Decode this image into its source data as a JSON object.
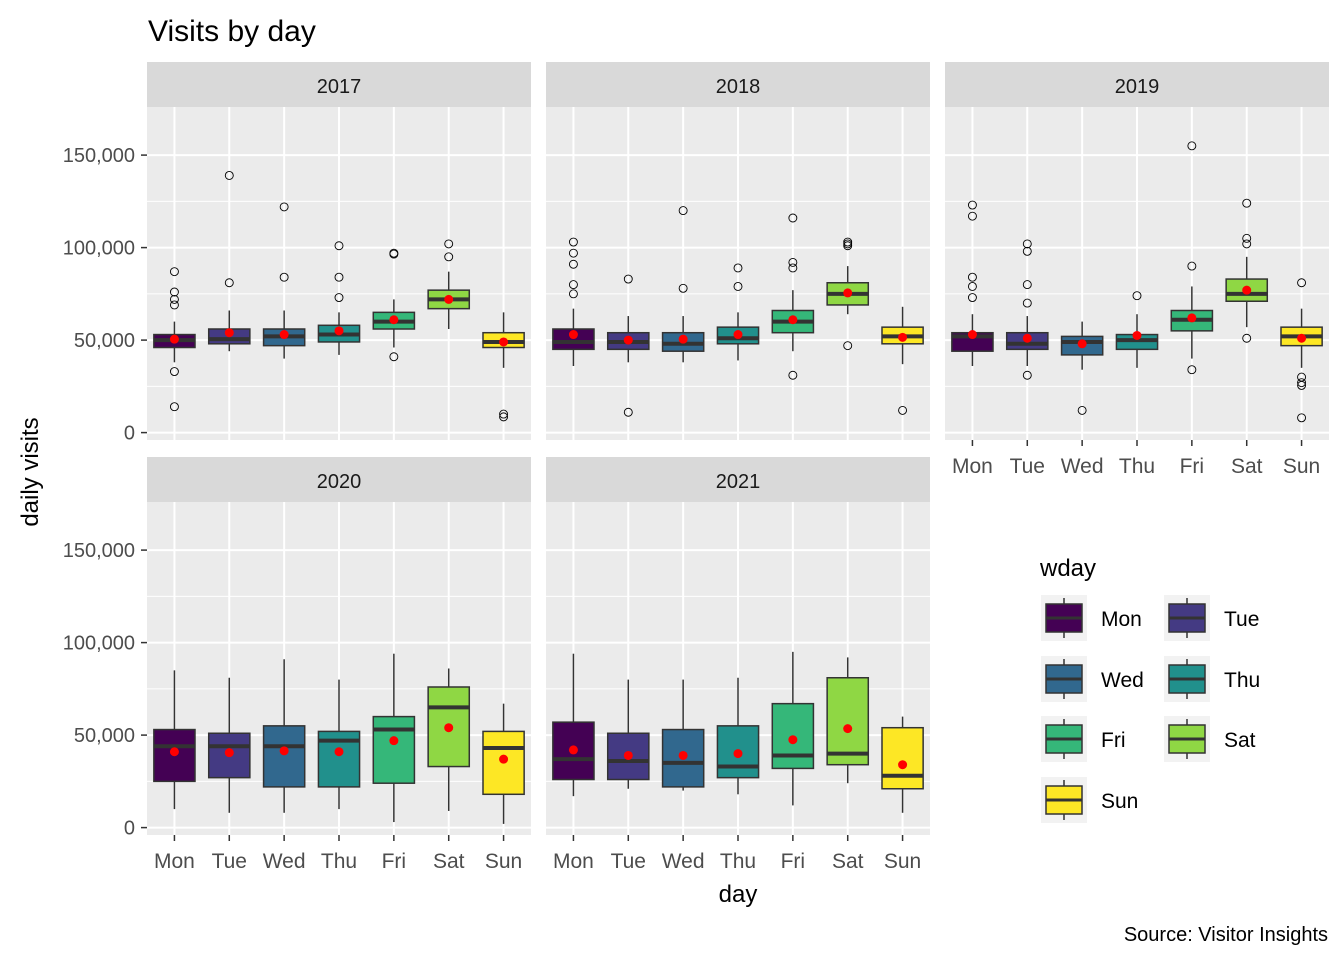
{
  "chart_data": {
    "type": "boxplot",
    "title": "Visits by day",
    "xlabel": "day",
    "ylabel": "daily visits",
    "caption": "Source: Visitor Insights",
    "ylim": [
      -4000,
      176000
    ],
    "y_ticks": [
      0,
      50000,
      100000,
      150000
    ],
    "y_tick_labels": [
      "0",
      "50,000",
      "100,000",
      "150,000"
    ],
    "categories": [
      "Mon",
      "Tue",
      "Wed",
      "Thu",
      "Fri",
      "Sat",
      "Sun"
    ],
    "legend": {
      "title": "wday",
      "position": "right",
      "entries": [
        "Mon",
        "Tue",
        "Wed",
        "Thu",
        "Fri",
        "Sat",
        "Sun"
      ]
    },
    "colors": {
      "Mon": "#440154",
      "Tue": "#443A83",
      "Wed": "#31688E",
      "Thu": "#21908C",
      "Fri": "#35B779",
      "Sat": "#8FD744",
      "Sun": "#FDE725",
      "mean_point": "#FF0000",
      "panel_bg": "#EBEBEB",
      "strip_bg": "#D9D9D9"
    },
    "grid": true,
    "panels": [
      {
        "year": "2017",
        "boxes": [
          {
            "day": "Mon",
            "lower_whisker": 38000,
            "q1": 46000,
            "median": 50000,
            "q3": 53000,
            "upper_whisker": 60000,
            "mean": 50500,
            "outliers": [
              87000,
              76000,
              72000,
              69000,
              33000,
              14000
            ]
          },
          {
            "day": "Tue",
            "lower_whisker": 44000,
            "q1": 48000,
            "median": 50500,
            "q3": 56000,
            "upper_whisker": 66000,
            "mean": 54000,
            "outliers": [
              139000,
              81000
            ]
          },
          {
            "day": "Wed",
            "lower_whisker": 40000,
            "q1": 47000,
            "median": 52000,
            "q3": 56000,
            "upper_whisker": 66000,
            "mean": 53000,
            "outliers": [
              122000,
              84000
            ]
          },
          {
            "day": "Thu",
            "lower_whisker": 42000,
            "q1": 49000,
            "median": 53000,
            "q3": 58000,
            "upper_whisker": 65000,
            "mean": 55000,
            "outliers": [
              101000,
              84000,
              73000
            ]
          },
          {
            "day": "Fri",
            "lower_whisker": 46000,
            "q1": 56000,
            "median": 60000,
            "q3": 65000,
            "upper_whisker": 72000,
            "mean": 61000,
            "outliers": [
              97000,
              96500,
              41000
            ]
          },
          {
            "day": "Sat",
            "lower_whisker": 56000,
            "q1": 67000,
            "median": 72000,
            "q3": 77000,
            "upper_whisker": 87000,
            "mean": 72000,
            "outliers": [
              102000,
              95000
            ]
          },
          {
            "day": "Sun",
            "lower_whisker": 35000,
            "q1": 46000,
            "median": 49000,
            "q3": 54000,
            "upper_whisker": 65000,
            "mean": 49000,
            "outliers": [
              10000,
              8500
            ]
          }
        ]
      },
      {
        "year": "2018",
        "boxes": [
          {
            "day": "Mon",
            "lower_whisker": 36000,
            "q1": 45000,
            "median": 49000,
            "q3": 56000,
            "upper_whisker": 67000,
            "mean": 53000,
            "outliers": [
              103000,
              97000,
              91000,
              80000,
              75000
            ]
          },
          {
            "day": "Tue",
            "lower_whisker": 38000,
            "q1": 45000,
            "median": 49000,
            "q3": 54000,
            "upper_whisker": 63000,
            "mean": 50000,
            "outliers": [
              83000,
              11000
            ]
          },
          {
            "day": "Wed",
            "lower_whisker": 38000,
            "q1": 44000,
            "median": 48000,
            "q3": 54000,
            "upper_whisker": 63000,
            "mean": 50500,
            "outliers": [
              120000,
              78000
            ]
          },
          {
            "day": "Thu",
            "lower_whisker": 39000,
            "q1": 48000,
            "median": 51000,
            "q3": 57000,
            "upper_whisker": 65000,
            "mean": 53000,
            "outliers": [
              89000,
              79000
            ]
          },
          {
            "day": "Fri",
            "lower_whisker": 44000,
            "q1": 54000,
            "median": 60000,
            "q3": 66000,
            "upper_whisker": 77000,
            "mean": 61000,
            "outliers": [
              116000,
              92000,
              89000,
              31000
            ]
          },
          {
            "day": "Sat",
            "lower_whisker": 64000,
            "q1": 69000,
            "median": 75000,
            "q3": 81000,
            "upper_whisker": 90000,
            "mean": 75500,
            "outliers": [
              103000,
              102000,
              101000,
              47000
            ]
          },
          {
            "day": "Sun",
            "lower_whisker": 37000,
            "q1": 48000,
            "median": 52000,
            "q3": 57000,
            "upper_whisker": 68000,
            "mean": 51500,
            "outliers": [
              12000
            ]
          }
        ]
      },
      {
        "year": "2019",
        "boxes": [
          {
            "day": "Mon",
            "lower_whisker": 36000,
            "q1": 44000,
            "median": 52000,
            "q3": 54000,
            "upper_whisker": 64000,
            "mean": 53000,
            "outliers": [
              123000,
              117000,
              84000,
              79000,
              73000
            ]
          },
          {
            "day": "Tue",
            "lower_whisker": 36000,
            "q1": 45000,
            "median": 48000,
            "q3": 54000,
            "upper_whisker": 63000,
            "mean": 51000,
            "outliers": [
              102000,
              98000,
              80000,
              70000,
              31000
            ]
          },
          {
            "day": "Wed",
            "lower_whisker": 34000,
            "q1": 42000,
            "median": 49000,
            "q3": 52000,
            "upper_whisker": 60000,
            "mean": 48000,
            "outliers": [
              12000
            ]
          },
          {
            "day": "Thu",
            "lower_whisker": 35000,
            "q1": 45000,
            "median": 50000,
            "q3": 53000,
            "upper_whisker": 64000,
            "mean": 52500,
            "outliers": [
              74000
            ]
          },
          {
            "day": "Fri",
            "lower_whisker": 40000,
            "q1": 55000,
            "median": 61000,
            "q3": 66000,
            "upper_whisker": 79000,
            "mean": 62000,
            "outliers": [
              155000,
              90000,
              34000
            ]
          },
          {
            "day": "Sat",
            "lower_whisker": 57000,
            "q1": 71000,
            "median": 75000,
            "q3": 83000,
            "upper_whisker": 95000,
            "mean": 77000,
            "outliers": [
              124000,
              105000,
              102000,
              51000
            ]
          },
          {
            "day": "Sun",
            "lower_whisker": 35000,
            "q1": 47000,
            "median": 52000,
            "q3": 57000,
            "upper_whisker": 67000,
            "mean": 51000,
            "outliers": [
              81000,
              30000,
              27000,
              25500,
              8000
            ]
          }
        ]
      },
      {
        "year": "2020",
        "boxes": [
          {
            "day": "Mon",
            "lower_whisker": 10000,
            "q1": 25000,
            "median": 44000,
            "q3": 53000,
            "upper_whisker": 85000,
            "mean": 41000,
            "outliers": []
          },
          {
            "day": "Tue",
            "lower_whisker": 8000,
            "q1": 27000,
            "median": 44000,
            "q3": 51000,
            "upper_whisker": 81000,
            "mean": 40500,
            "outliers": []
          },
          {
            "day": "Wed",
            "lower_whisker": 8000,
            "q1": 22000,
            "median": 44000,
            "q3": 55000,
            "upper_whisker": 91000,
            "mean": 41500,
            "outliers": []
          },
          {
            "day": "Thu",
            "lower_whisker": 10000,
            "q1": 22000,
            "median": 47000,
            "q3": 52000,
            "upper_whisker": 80000,
            "mean": 41000,
            "outliers": []
          },
          {
            "day": "Fri",
            "lower_whisker": 3000,
            "q1": 24000,
            "median": 53000,
            "q3": 60000,
            "upper_whisker": 94000,
            "mean": 47000,
            "outliers": []
          },
          {
            "day": "Sat",
            "lower_whisker": 9000,
            "q1": 33000,
            "median": 65000,
            "q3": 76000,
            "upper_whisker": 86000,
            "mean": 54000,
            "outliers": []
          },
          {
            "day": "Sun",
            "lower_whisker": 2000,
            "q1": 18000,
            "median": 43000,
            "q3": 52000,
            "upper_whisker": 67000,
            "mean": 37000,
            "outliers": []
          }
        ]
      },
      {
        "year": "2021",
        "boxes": [
          {
            "day": "Mon",
            "lower_whisker": 17000,
            "q1": 26000,
            "median": 37000,
            "q3": 57000,
            "upper_whisker": 94000,
            "mean": 42000,
            "outliers": []
          },
          {
            "day": "Tue",
            "lower_whisker": 21000,
            "q1": 26000,
            "median": 36000,
            "q3": 51000,
            "upper_whisker": 80000,
            "mean": 39000,
            "outliers": []
          },
          {
            "day": "Wed",
            "lower_whisker": 20000,
            "q1": 22000,
            "median": 35000,
            "q3": 53000,
            "upper_whisker": 80000,
            "mean": 39000,
            "outliers": []
          },
          {
            "day": "Thu",
            "lower_whisker": 18000,
            "q1": 27000,
            "median": 33000,
            "q3": 55000,
            "upper_whisker": 81000,
            "mean": 40000,
            "outliers": []
          },
          {
            "day": "Fri",
            "lower_whisker": 12000,
            "q1": 32000,
            "median": 39000,
            "q3": 67000,
            "upper_whisker": 95000,
            "mean": 47500,
            "outliers": []
          },
          {
            "day": "Sat",
            "lower_whisker": 24000,
            "q1": 34000,
            "median": 40000,
            "q3": 81000,
            "upper_whisker": 92000,
            "mean": 53500,
            "outliers": []
          },
          {
            "day": "Sun",
            "lower_whisker": 8000,
            "q1": 21000,
            "median": 28000,
            "q3": 54000,
            "upper_whisker": 60000,
            "mean": 34000,
            "outliers": []
          }
        ]
      }
    ]
  }
}
